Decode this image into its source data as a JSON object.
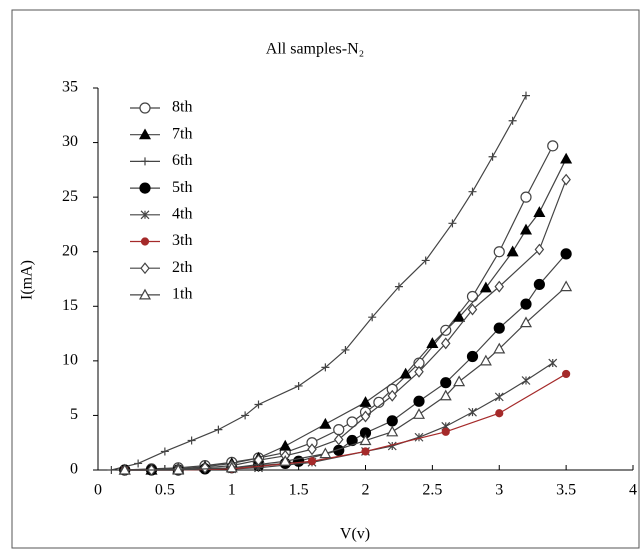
{
  "chart_data": {
    "type": "line",
    "title": "All samples-N₂",
    "xlabel": "V(v)",
    "ylabel": "I(mA)",
    "xlim": [
      0,
      4
    ],
    "xticks": [
      0,
      0.5,
      1,
      1.5,
      2,
      2.5,
      3,
      3.5,
      4
    ],
    "ylim": [
      0,
      35
    ],
    "yticks": [
      0,
      5,
      10,
      15,
      20,
      25,
      30,
      35
    ],
    "grid": false,
    "legend": "upper left",
    "series": [
      {
        "name": "8th",
        "color": "#444444",
        "marker": "open-circle",
        "x": [
          0.2,
          0.4,
          0.6,
          0.8,
          1.0,
          1.2,
          1.4,
          1.6,
          1.8,
          1.9,
          2.0,
          2.1,
          2.2,
          2.4,
          2.6,
          2.8,
          3.0,
          3.2,
          3.4
        ],
        "values": [
          0,
          0.1,
          0.2,
          0.4,
          0.7,
          1.1,
          1.6,
          2.5,
          3.7,
          4.4,
          5.3,
          6.2,
          7.4,
          9.8,
          12.8,
          15.9,
          20.0,
          25.0,
          29.7
        ]
      },
      {
        "name": "7th",
        "color": "#444444",
        "marker": "filled-triangle",
        "x": [
          0.2,
          0.4,
          0.6,
          0.8,
          1.0,
          1.2,
          1.4,
          1.7,
          2.0,
          2.3,
          2.5,
          2.7,
          2.9,
          3.1,
          3.2,
          3.3,
          3.5
        ],
        "values": [
          0,
          0,
          0.1,
          0.3,
          0.6,
          1.1,
          2.2,
          4.2,
          6.2,
          8.8,
          11.6,
          14.0,
          16.7,
          20.0,
          22.0,
          23.6,
          28.5
        ]
      },
      {
        "name": "6th",
        "color": "#444444",
        "marker": "plus",
        "x": [
          0.1,
          0.3,
          0.5,
          0.7,
          0.9,
          1.1,
          1.2,
          1.5,
          1.7,
          1.85,
          2.05,
          2.25,
          2.45,
          2.65,
          2.8,
          2.95,
          3.1,
          3.2
        ],
        "values": [
          0,
          0.6,
          1.7,
          2.7,
          3.7,
          5.0,
          6.0,
          7.7,
          9.4,
          11.0,
          14.0,
          16.8,
          19.2,
          22.6,
          25.5,
          28.7,
          32.0,
          34.3
        ]
      },
      {
        "name": "5th",
        "color": "#444444",
        "marker": "filled-circle",
        "x": [
          0.2,
          0.4,
          0.6,
          0.8,
          1.0,
          1.2,
          1.4,
          1.5,
          1.8,
          1.9,
          2.0,
          2.2,
          2.4,
          2.6,
          2.8,
          3.0,
          3.2,
          3.3,
          3.5
        ],
        "values": [
          0,
          0,
          0,
          0.1,
          0.2,
          0.4,
          0.6,
          0.8,
          1.8,
          2.7,
          3.4,
          4.5,
          6.3,
          8.0,
          10.4,
          13.0,
          15.2,
          17.0,
          19.8
        ]
      },
      {
        "name": "4th",
        "color": "#444444",
        "marker": "star",
        "x": [
          0.2,
          0.6,
          1.0,
          1.2,
          1.6,
          2.0,
          2.2,
          2.4,
          2.6,
          2.8,
          3.0,
          3.2,
          3.4
        ],
        "values": [
          0,
          0,
          0.1,
          0.2,
          0.7,
          1.7,
          2.2,
          3.0,
          4.0,
          5.3,
          6.7,
          8.2,
          9.8
        ]
      },
      {
        "name": "3th",
        "color": "#a52a2a",
        "marker": "small-dot",
        "x": [
          0.2,
          0.6,
          1.0,
          1.6,
          2.0,
          2.6,
          3.0,
          3.5
        ],
        "values": [
          0,
          0,
          0.1,
          0.8,
          1.7,
          3.5,
          5.2,
          8.8
        ]
      },
      {
        "name": "2th",
        "color": "#444444",
        "marker": "open-diamond",
        "x": [
          0.2,
          0.4,
          0.6,
          0.8,
          1.0,
          1.2,
          1.4,
          1.6,
          1.8,
          2.0,
          2.2,
          2.4,
          2.6,
          2.8,
          3.0,
          3.3,
          3.5
        ],
        "values": [
          0,
          0,
          0.1,
          0.2,
          0.4,
          0.9,
          1.3,
          1.9,
          2.8,
          4.9,
          6.8,
          9.0,
          11.6,
          14.7,
          16.8,
          20.2,
          26.6
        ]
      },
      {
        "name": "1th",
        "color": "#444444",
        "marker": "open-triangle",
        "x": [
          0.2,
          0.6,
          1.0,
          1.4,
          1.7,
          2.0,
          2.2,
          2.4,
          2.6,
          2.7,
          2.9,
          3.0,
          3.2,
          3.5
        ],
        "values": [
          0,
          0,
          0.2,
          0.8,
          1.5,
          2.7,
          3.5,
          5.1,
          6.8,
          8.1,
          10.0,
          11.1,
          13.5,
          16.8
        ]
      }
    ]
  }
}
